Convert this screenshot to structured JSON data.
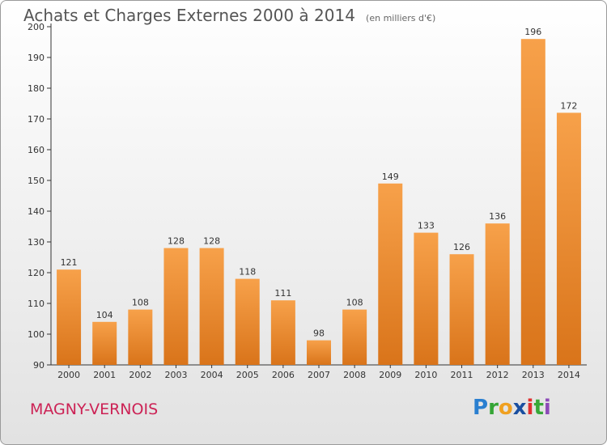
{
  "header": {
    "title": "Achats et Charges Externes 2000 à 2014",
    "unit": "(en milliers d'€)"
  },
  "footer": {
    "commune": "MAGNY-VERNOIS",
    "brand": "Proxiti"
  },
  "chart_data": {
    "type": "bar",
    "title": "Achats et Charges Externes 2000 à 2014",
    "subtitle": "(en milliers d'€)",
    "categories": [
      "2000",
      "2001",
      "2002",
      "2003",
      "2004",
      "2005",
      "2006",
      "2007",
      "2008",
      "2009",
      "2010",
      "2011",
      "2012",
      "2013",
      "2014"
    ],
    "values": [
      121,
      104,
      108,
      128,
      128,
      118,
      111,
      98,
      108,
      149,
      133,
      126,
      136,
      196,
      172
    ],
    "ylim": [
      90,
      200
    ],
    "yticks": [
      90,
      100,
      110,
      120,
      130,
      140,
      150,
      160,
      170,
      180,
      190,
      200
    ],
    "grid": false,
    "legend": "none",
    "colors": {
      "bar_light": "#f7a14a",
      "bar_dark": "#d9741a",
      "axis": "#333333",
      "text": "#333333"
    }
  }
}
